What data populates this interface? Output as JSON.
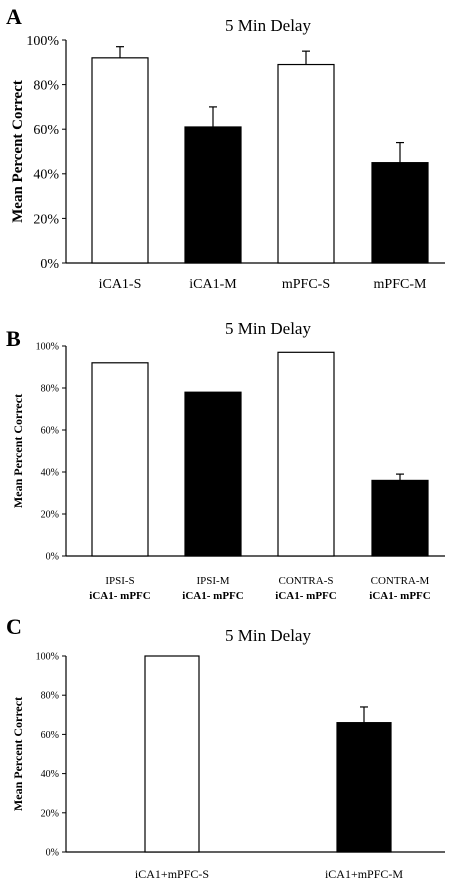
{
  "chart_data": [
    {
      "type": "bar",
      "panel_label": "A",
      "title": "5 Min Delay",
      "ylabel": "Mean Percent Correct",
      "xlabel": "",
      "ylim": [
        0,
        100
      ],
      "yticks": [
        "0%",
        "20%",
        "40%",
        "60%",
        "80%",
        "100%"
      ],
      "categories": [
        [
          "iCA1-S"
        ],
        [
          "iCA1-M"
        ],
        [
          "mPFC-S"
        ],
        [
          "mPFC-M"
        ]
      ],
      "values": [
        92,
        61,
        89,
        45
      ],
      "errors": [
        5,
        9,
        6,
        9
      ],
      "fills": [
        "#ffffff",
        "#000000",
        "#ffffff",
        "#000000"
      ],
      "grid": false
    },
    {
      "type": "bar",
      "panel_label": "B",
      "title": "5 Min Delay",
      "ylabel": "Mean Percent Correct",
      "xlabel": "",
      "ylim": [
        0,
        100
      ],
      "yticks": [
        "0%",
        "20%",
        "40%",
        "60%",
        "80%",
        "100%"
      ],
      "categories": [
        [
          "IPSI-S",
          "iCA1- mPFC"
        ],
        [
          "IPSI-M",
          "iCA1- mPFC"
        ],
        [
          "CONTRA-S",
          "iCA1- mPFC"
        ],
        [
          "CONTRA-M",
          "iCA1- mPFC"
        ]
      ],
      "values": [
        92,
        78,
        97,
        36
      ],
      "errors": [
        0,
        0,
        0,
        3
      ],
      "fills": [
        "#ffffff",
        "#000000",
        "#ffffff",
        "#000000"
      ],
      "grid": false
    },
    {
      "type": "bar",
      "panel_label": "C",
      "title": "5 Min Delay",
      "ylabel": "Mean Percent Correct",
      "xlabel": "",
      "ylim": [
        0,
        100
      ],
      "yticks": [
        "0%",
        "20%",
        "40%",
        "60%",
        "80%",
        "100%"
      ],
      "categories": [
        [
          "iCA1+mPFC-S"
        ],
        [
          "iCA1+mPFC-M"
        ]
      ],
      "values": [
        100,
        66
      ],
      "errors": [
        0,
        8
      ],
      "fills": [
        "#ffffff",
        "#000000"
      ],
      "grid": false
    }
  ]
}
